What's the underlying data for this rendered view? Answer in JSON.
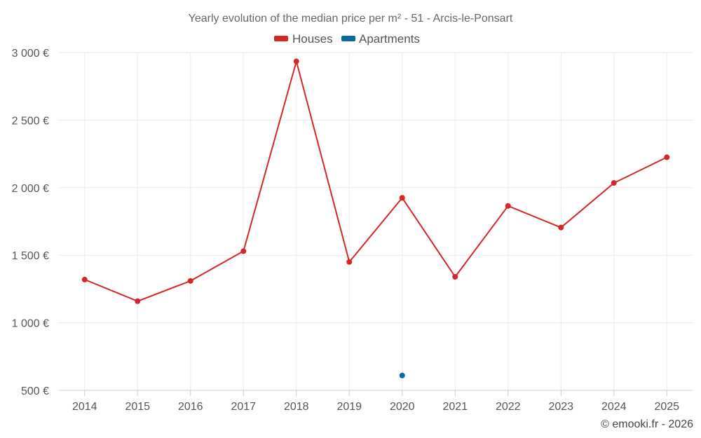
{
  "chart_data": {
    "type": "line",
    "title": "Yearly evolution of the median price per m² - 51 - Arcis-le-Ponsart",
    "categories": [
      "2014",
      "2015",
      "2016",
      "2017",
      "2018",
      "2019",
      "2020",
      "2021",
      "2022",
      "2023",
      "2024",
      "2025"
    ],
    "y_ticks": [
      500,
      1000,
      1500,
      2000,
      2500,
      3000
    ],
    "y_tick_labels": [
      "500 €",
      "1 000 €",
      "1 500 €",
      "2 000 €",
      "2 500 €",
      "3 000 €"
    ],
    "ylim": [
      500,
      3000
    ],
    "grid": true,
    "legend_position": "top-center",
    "series": [
      {
        "name": "Houses",
        "color": "#d62728",
        "values": [
          1320,
          1160,
          1310,
          1530,
          2935,
          1450,
          1925,
          1340,
          1865,
          1705,
          2035,
          2225
        ]
      },
      {
        "name": "Apartments",
        "color": "#0a6aa1",
        "values": [
          null,
          null,
          null,
          null,
          null,
          null,
          610,
          null,
          null,
          null,
          null,
          null
        ]
      }
    ],
    "credit": "© emooki.fr - 2026"
  }
}
